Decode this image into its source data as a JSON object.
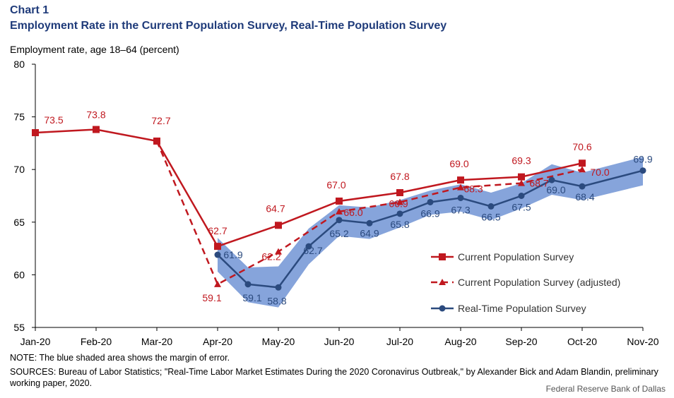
{
  "header": {
    "chart_number": "Chart 1",
    "title": "Employment Rate in the Current Population Survey, Real-Time Population Survey",
    "y_axis_label": "Employment rate, age 18–64 (percent)"
  },
  "footer": {
    "note": "NOTE: The blue shaded area shows the margin of error.",
    "sources": "SOURCES: Bureau of Labor Statistics; \"Real-Time Labor Market Estimates During the 2020 Coronavirus Outbreak,\" by Alexander Bick and Adam Blandin, preliminary working paper, 2020.",
    "credit": "Federal Reserve Bank of Dallas"
  },
  "colors": {
    "cps": "#c0181f",
    "rps": "#2b4a7e",
    "band": "#7f9fd9",
    "axis": "#000000"
  },
  "chart_data": {
    "type": "line",
    "xlabel": "",
    "ylabel": "Employment rate, age 18–64 (percent)",
    "ylim": [
      55,
      80
    ],
    "yticks": [
      55,
      60,
      65,
      70,
      75,
      80
    ],
    "ytick_labels": [
      "55",
      "60",
      "65",
      "70",
      "75",
      "80"
    ],
    "categories": [
      "Jan-20",
      "Feb-20",
      "Mar-20",
      "Apr-20",
      "May-20",
      "Jun-20",
      "Jul-20",
      "Aug-20",
      "Sep-20",
      "Oct-20",
      "Nov-20"
    ],
    "grid": false,
    "legend_position": "right, inside plot",
    "series": [
      {
        "name": "Current Population Survey",
        "style": "solid",
        "marker": "square",
        "x": [
          0,
          1,
          2,
          3,
          4,
          5,
          6,
          7,
          8,
          9
        ],
        "values": [
          73.5,
          73.8,
          72.7,
          62.7,
          64.7,
          67.0,
          67.8,
          69.0,
          69.3,
          70.6
        ],
        "labels": [
          "73.5",
          "73.8",
          "72.7",
          "62.7",
          "64.7",
          "67.0",
          "67.8",
          "69.0",
          "69.3",
          "70.6"
        ]
      },
      {
        "name": "Current Population Survey (adjusted)",
        "style": "dashed",
        "marker": "triangle",
        "x": [
          2,
          3,
          4,
          5,
          6,
          7,
          8,
          9
        ],
        "values": [
          72.7,
          59.1,
          62.2,
          66.0,
          66.9,
          68.3,
          68.7,
          70.0
        ],
        "labels": [
          "",
          "59.1",
          "62.2",
          "66.0",
          "66.9",
          "68.3",
          "68.7",
          "70.0"
        ]
      },
      {
        "name": "Real-Time Population Survey",
        "style": "solid",
        "marker": "circle",
        "x": [
          3,
          3.5,
          4,
          4.5,
          5,
          5.5,
          6,
          6.5,
          7,
          7.5,
          8,
          8.5,
          9,
          10
        ],
        "values": [
          61.9,
          59.1,
          58.8,
          62.7,
          65.2,
          64.9,
          65.8,
          66.9,
          67.3,
          66.5,
          67.5,
          69.0,
          68.4,
          69.9
        ],
        "labels": [
          "61.9",
          "59.1",
          "58.8",
          "62.7",
          "65.2",
          "64.9",
          "65.8",
          "66.9",
          "67.3",
          "66.5",
          "67.5",
          "69.0",
          "68.4",
          "69.9"
        ],
        "margin_of_error": {
          "upper": [
            63.5,
            60.7,
            60.8,
            64.4,
            66.6,
            66.4,
            67.1,
            68.0,
            68.6,
            67.8,
            68.7,
            70.5,
            69.7,
            71.2
          ],
          "lower": [
            60.3,
            57.4,
            56.9,
            61.0,
            63.7,
            63.4,
            64.5,
            65.7,
            66.0,
            65.2,
            66.3,
            67.6,
            67.1,
            68.5
          ]
        }
      }
    ]
  }
}
